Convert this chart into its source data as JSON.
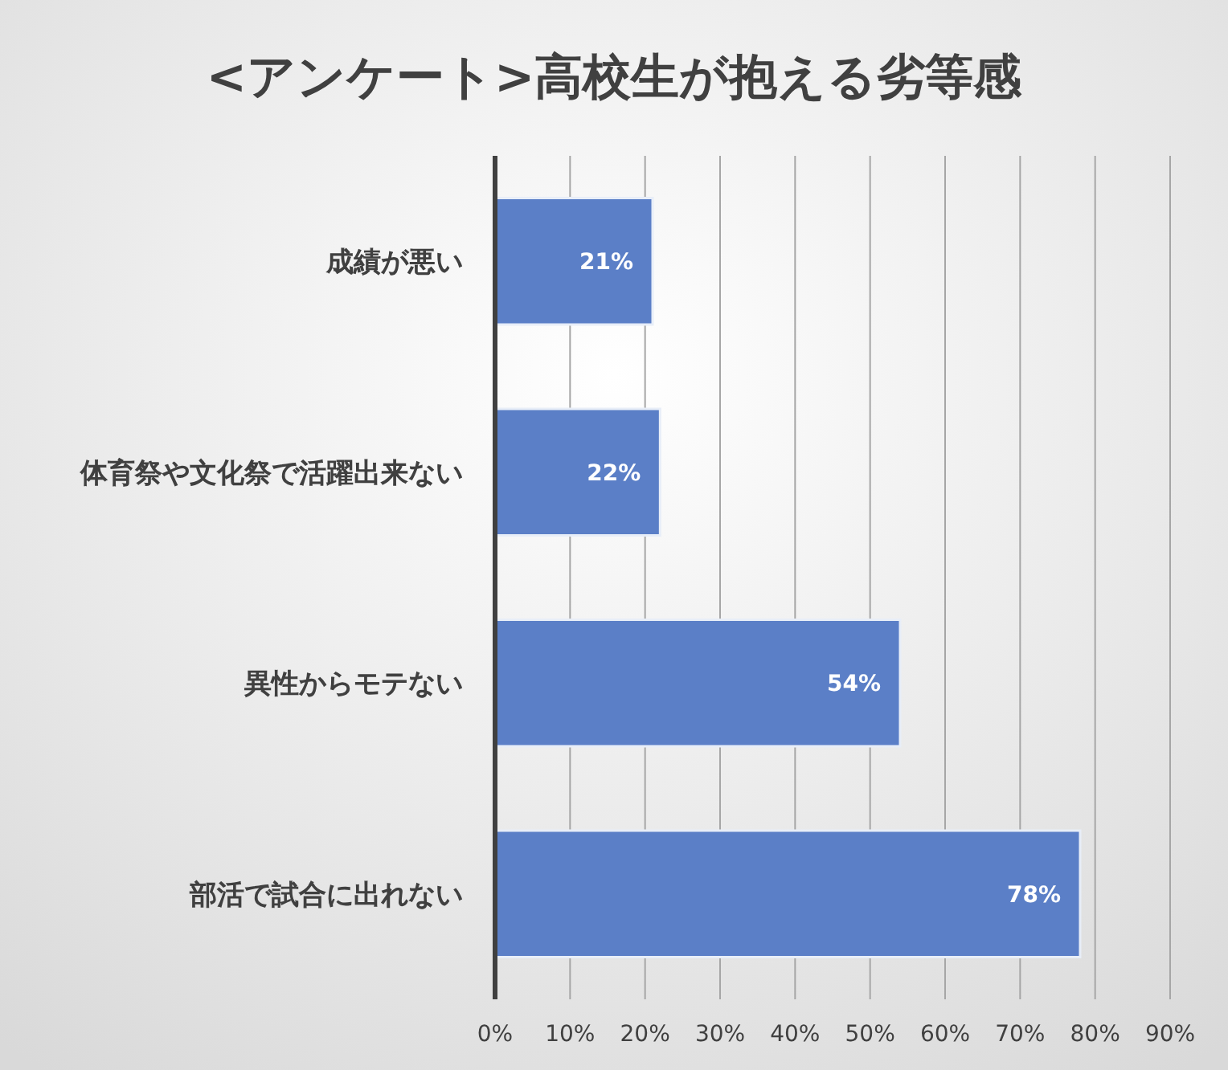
{
  "chart_data": {
    "type": "bar",
    "orientation": "horizontal",
    "title": "<アンケート>高校生が抱える劣等感",
    "categories": [
      "成績が悪い",
      "体育祭や文化祭で活躍出来ない",
      "異性からモテない",
      "部活で試合に出れない"
    ],
    "values": [
      21,
      22,
      54,
      78
    ],
    "color": "#5b7fc7",
    "value_labels": [
      "21%",
      "22%",
      "54%",
      "78%"
    ],
    "xlim": [
      0,
      90
    ],
    "xticks": [
      {
        "value": 0,
        "label": "0%"
      },
      {
        "value": 10,
        "label": "10%"
      },
      {
        "value": 20,
        "label": "20%"
      },
      {
        "value": 30,
        "label": "30%"
      },
      {
        "value": 40,
        "label": "40%"
      },
      {
        "value": 50,
        "label": "50%"
      },
      {
        "value": 60,
        "label": "60%"
      },
      {
        "value": 70,
        "label": "70%"
      },
      {
        "value": 80,
        "label": "80%"
      },
      {
        "value": 90,
        "label": "90%"
      }
    ],
    "grid": "x"
  }
}
